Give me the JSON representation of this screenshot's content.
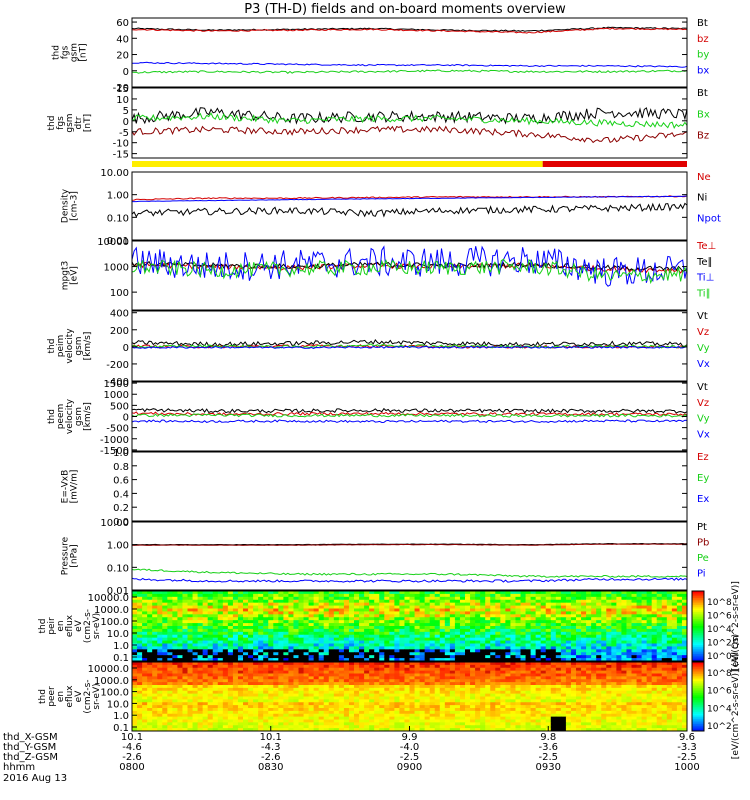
{
  "title": "P3 (TH-D) fields and on-board moments overview",
  "colors": {
    "black": "#000000",
    "red": "#d40000",
    "dark_red": "#8b0000",
    "green": "#18d018",
    "blue": "#0000ff",
    "yellow": "#ffee00",
    "bar_red": "#e00000"
  },
  "chart_data": [
    {
      "type": "line",
      "id": "p1",
      "ylabel_lines": [
        "thd",
        "fgs",
        "gsm",
        "[nT]"
      ],
      "ylim": [
        -20,
        65
      ],
      "ticks": [
        [
          "60",
          60
        ],
        [
          "40",
          40
        ],
        [
          "20",
          20
        ],
        [
          "0",
          0
        ],
        [
          "-20",
          -20
        ]
      ],
      "log": false,
      "series": [
        {
          "name": "Bt",
          "color": "black",
          "base": [
            52,
            50,
            51,
            52,
            50,
            49,
            53,
            52
          ],
          "noise": 0.8
        },
        {
          "name": "bz",
          "color": "red",
          "base": [
            51,
            49,
            50,
            51,
            49,
            47,
            52,
            51
          ],
          "noise": 0.8
        },
        {
          "name": "by",
          "color": "green",
          "base": [
            -2,
            -1,
            -2,
            -1,
            0,
            -1,
            -1,
            0
          ],
          "noise": 1.2
        },
        {
          "name": "bx",
          "color": "blue",
          "base": [
            10,
            9,
            8,
            7,
            7,
            6,
            6,
            5
          ],
          "noise": 0.8
        }
      ]
    },
    {
      "type": "line",
      "id": "p2",
      "ylabel_lines": [
        "thd",
        "fgs",
        "gsm",
        "dtr",
        "[nT]"
      ],
      "ylim": [
        -17,
        15
      ],
      "ticks": [
        [
          "15",
          15
        ],
        [
          "10",
          10
        ],
        [
          "5",
          5
        ],
        [
          "0",
          0
        ],
        [
          "-5",
          -5
        ],
        [
          "-10",
          -10
        ],
        [
          "-15",
          -15
        ]
      ],
      "log": false,
      "series": [
        {
          "name": "Bt",
          "color": "black",
          "base": [
            1,
            4,
            1,
            2,
            2,
            1,
            4,
            3
          ],
          "noise": 2.5
        },
        {
          "name": "Bx",
          "color": "green",
          "base": [
            1,
            2,
            0,
            1,
            1,
            0,
            -1,
            -2
          ],
          "noise": 1.5
        },
        {
          "name": "Bz",
          "color": "dark_red",
          "base": [
            -5,
            -4,
            -5,
            -4,
            -4,
            -6,
            -9,
            -6
          ],
          "noise": 1.5
        }
      ]
    },
    {
      "type": "line",
      "id": "p3",
      "ylabel_lines": [
        "Density",
        "[cm-3]"
      ],
      "ylim": [
        0.01,
        10
      ],
      "ticks": [
        [
          "10.00",
          10
        ],
        [
          "1.00",
          1
        ],
        [
          "0.10",
          0.1
        ],
        [
          "0.01",
          0.01
        ]
      ],
      "log": true,
      "series": [
        {
          "name": "Ne",
          "color": "red",
          "base": [
            0.6,
            0.7,
            0.7,
            0.75,
            0.8,
            0.8,
            0.8,
            0.85
          ],
          "noise": 0.05
        },
        {
          "name": "Ni",
          "color": "black",
          "base": [
            0.15,
            0.18,
            0.2,
            0.15,
            0.2,
            0.22,
            0.25,
            0.3
          ],
          "noise": 0.3
        },
        {
          "name": "Npot",
          "color": "blue",
          "base": [
            0.5,
            0.55,
            0.6,
            0.65,
            0.7,
            0.75,
            0.8,
            0.85
          ],
          "noise": 0.02
        }
      ]
    },
    {
      "type": "line",
      "id": "p4",
      "ylabel_lines": [
        "mpgt3",
        "[eV]"
      ],
      "ylim": [
        20,
        10000
      ],
      "ticks": [
        [
          "10000",
          10000
        ],
        [
          "1000",
          1000
        ],
        [
          "100",
          100
        ]
      ],
      "log": true,
      "series": [
        {
          "name": "Te⊥",
          "color": "red",
          "base": [
            1200,
            1000,
            900,
            1100,
            1000,
            1100,
            800,
            700
          ],
          "noise": 0.2
        },
        {
          "name": "Te∥",
          "color": "black",
          "base": [
            1300,
            1100,
            1000,
            1200,
            1100,
            1200,
            900,
            800
          ],
          "noise": 0.2
        },
        {
          "name": "Ti⊥",
          "color": "blue",
          "base": [
            1500,
            1000,
            1200,
            1500,
            1500,
            1800,
            600,
            700
          ],
          "noise": 1.2
        },
        {
          "name": "Ti∥",
          "color": "green",
          "base": [
            1000,
            700,
            800,
            900,
            900,
            1000,
            400,
            500
          ],
          "noise": 0.6
        }
      ]
    },
    {
      "type": "line",
      "id": "p5",
      "ylabel_lines": [
        "thd",
        "peim",
        "velocity",
        "gsm",
        "[km/s]"
      ],
      "ylim": [
        -400,
        420
      ],
      "ticks": [
        [
          "400",
          400
        ],
        [
          "200",
          200
        ],
        [
          "0",
          0
        ],
        [
          "-200",
          -200
        ],
        [
          "-400",
          -400
        ]
      ],
      "log": false,
      "series": [
        {
          "name": "Vt",
          "color": "black",
          "base": [
            50,
            30,
            40,
            60,
            40,
            30,
            40,
            30
          ],
          "noise": 25
        },
        {
          "name": "Vz",
          "color": "red",
          "base": [
            10,
            0,
            10,
            10,
            0,
            0,
            0,
            0
          ],
          "noise": 15
        },
        {
          "name": "Vy",
          "color": "green",
          "base": [
            0,
            10,
            0,
            20,
            10,
            0,
            10,
            0
          ],
          "noise": 15
        },
        {
          "name": "Vx",
          "color": "blue",
          "base": [
            -10,
            -5,
            -10,
            -5,
            -5,
            -5,
            -5,
            -5
          ],
          "noise": 10
        }
      ]
    },
    {
      "type": "line",
      "id": "p6",
      "ylabel_lines": [
        "thd",
        "peem",
        "velocity",
        "gsm",
        "[km/s]"
      ],
      "ylim": [
        -1550,
        1550
      ],
      "ticks": [
        [
          "1500",
          1500
        ],
        [
          "1000",
          1000
        ],
        [
          "500",
          500
        ],
        [
          "0",
          0
        ],
        [
          "-500",
          -500
        ],
        [
          "-1000",
          -1000
        ],
        [
          "-1500",
          -1500
        ]
      ],
      "log": false,
      "series": [
        {
          "name": "Vt",
          "color": "black",
          "base": [
            300,
            250,
            250,
            280,
            260,
            250,
            250,
            240
          ],
          "noise": 80
        },
        {
          "name": "Vz",
          "color": "red",
          "base": [
            150,
            100,
            120,
            130,
            120,
            110,
            110,
            100
          ],
          "noise": 60
        },
        {
          "name": "Vy",
          "color": "green",
          "base": [
            50,
            60,
            40,
            50,
            40,
            30,
            40,
            30
          ],
          "noise": 60
        },
        {
          "name": "Vx",
          "color": "blue",
          "base": [
            -200,
            -220,
            -200,
            -230,
            -210,
            -220,
            -200,
            -210
          ],
          "noise": 50
        }
      ]
    },
    {
      "type": "line",
      "id": "p7",
      "ylabel_lines": [
        "E=-VxB",
        "[mV/m]"
      ],
      "ylim": [
        0,
        1
      ],
      "ticks": [
        [
          "1.0",
          1
        ],
        [
          "0.8",
          0.8
        ],
        [
          "0.6",
          0.6
        ],
        [
          "0.4",
          0.4
        ],
        [
          "0.2",
          0.2
        ],
        [
          "0.0",
          0
        ]
      ],
      "log": false,
      "series": [
        {
          "name": "Ez",
          "color": "red",
          "base": [],
          "noise": 0
        },
        {
          "name": "Ey",
          "color": "green",
          "base": [],
          "noise": 0
        },
        {
          "name": "Ex",
          "color": "blue",
          "base": [],
          "noise": 0
        }
      ]
    },
    {
      "type": "line",
      "id": "p8",
      "ylabel_lines": [
        "Pressure",
        "[nPa]"
      ],
      "ylim": [
        0.01,
        10
      ],
      "ticks": [
        [
          "10.00",
          10
        ],
        [
          "1.00",
          1
        ],
        [
          "0.10",
          0.1
        ],
        [
          "0.01",
          0.01
        ]
      ],
      "log": true,
      "series": [
        {
          "name": "Pt",
          "color": "black",
          "base": [
            1.0,
            1.0,
            1.0,
            1.05,
            1.05,
            1.0,
            1.1,
            1.1
          ],
          "noise": 0.02
        },
        {
          "name": "Pb",
          "color": "dark_red",
          "base": [
            0.95,
            0.95,
            0.95,
            1.0,
            1.0,
            0.95,
            1.05,
            1.05
          ],
          "noise": 0.02
        },
        {
          "name": "Pe",
          "color": "green",
          "base": [
            0.08,
            0.06,
            0.05,
            0.05,
            0.05,
            0.04,
            0.04,
            0.04
          ],
          "noise": 0.08
        },
        {
          "name": "Pi",
          "color": "blue",
          "base": [
            0.03,
            0.025,
            0.025,
            0.025,
            0.025,
            0.025,
            0.03,
            0.03
          ],
          "noise": 0.1
        }
      ]
    },
    {
      "type": "heatmap",
      "id": "p9",
      "ylabel_lines": [
        "thd",
        "peir",
        "en",
        "eflux",
        "eV",
        "(cm2-s-",
        "sr-eV)"
      ],
      "ticks": [
        "10000.0",
        "1000.0",
        "100.0",
        "10.0",
        "1.0",
        "0.1"
      ],
      "colorbar": {
        "label": "[eV/(cm^2-s-sr-eV)]",
        "ticks": [
          "10^8",
          "10^6",
          "10^4",
          "10^2",
          "10^0"
        ]
      }
    },
    {
      "type": "heatmap",
      "id": "p10",
      "ylabel_lines": [
        "thd",
        "peer",
        "en",
        "eflux",
        "eV",
        "(cm2-s-",
        "sr-eV)"
      ],
      "ticks": [
        "10000.0",
        "1000.0",
        "100.0",
        "10.0",
        "1.0",
        "0.1"
      ],
      "colorbar": {
        "label": "[eV/(cm^2-s-sr-eV)] (All Qs)",
        "ticks": [
          "10^8",
          "10^6",
          "10^4",
          "10^2"
        ]
      }
    }
  ],
  "quality_bar": {
    "segments": [
      {
        "color": "yellow",
        "from": 0,
        "to": 0.74
      },
      {
        "color": "bar_red",
        "from": 0.74,
        "to": 1
      }
    ]
  },
  "xaxis": {
    "row_labels": [
      "thd_X-GSM",
      "thd_Y-GSM",
      "thd_Z-GSM",
      "hhmm",
      "2016 Aug 13"
    ],
    "columns": [
      {
        "x": "10.1",
        "y": "-4.6",
        "z": "-2.6",
        "t": "0800"
      },
      {
        "x": "10.1",
        "y": "-4.3",
        "z": "-2.6",
        "t": "0830"
      },
      {
        "x": "9.9",
        "y": "-4.0",
        "z": "-2.5",
        "t": "0900"
      },
      {
        "x": "9.8",
        "y": "-3.6",
        "z": "-2.5",
        "t": "0930"
      },
      {
        "x": "9.6",
        "y": "-3.3",
        "z": "-2.5",
        "t": "1000"
      }
    ]
  }
}
